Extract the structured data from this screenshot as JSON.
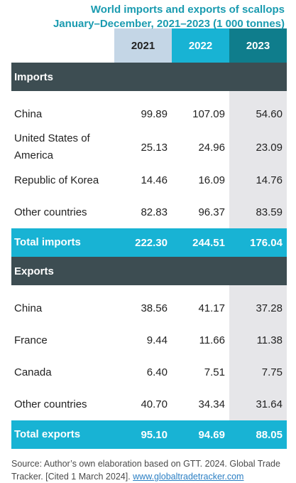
{
  "title": {
    "line1": "World imports and exports of scallops",
    "line2": "January–December, 2021–2023 (1 000 tonnes)"
  },
  "columns": [
    "2021",
    "2022",
    "2023"
  ],
  "imports": {
    "header": "Imports",
    "rows": [
      {
        "label": "China",
        "v2021": "99.89",
        "v2022": "107.09",
        "v2023": "54.60"
      },
      {
        "label": "United States of America",
        "v2021": "25.13",
        "v2022": "24.96",
        "v2023": "23.09"
      },
      {
        "label": "Republic of Korea",
        "v2021": "14.46",
        "v2022": "16.09",
        "v2023": "14.76"
      },
      {
        "label": "Other countries",
        "v2021": "82.83",
        "v2022": "96.37",
        "v2023": "83.59"
      }
    ],
    "total": {
      "label": "Total imports",
      "v2021": "222.30",
      "v2022": "244.51",
      "v2023": "176.04"
    }
  },
  "exports": {
    "header": "Exports",
    "rows": [
      {
        "label": "China",
        "v2021": "38.56",
        "v2022": "41.17",
        "v2023": "37.28"
      },
      {
        "label": "France",
        "v2021": "9.44",
        "v2022": "11.66",
        "v2023": "11.38"
      },
      {
        "label": "Canada",
        "v2021": "6.40",
        "v2022": "7.51",
        "v2023": "7.75"
      },
      {
        "label": "Other countries",
        "v2021": "40.70",
        "v2022": "34.34",
        "v2023": "31.64"
      }
    ],
    "total": {
      "label": "Total exports",
      "v2021": "95.10",
      "v2022": "94.69",
      "v2023": "88.05"
    }
  },
  "source": {
    "text": "Source: Author’s own elaboration based on GTT. 2024. Global Trade Tracker. [Cited 1 March 2024].",
    "link": "www.globaltradetracker.com"
  },
  "colors": {
    "title": "#1a9bb0",
    "header_2021": "#c4d6e6",
    "header_2022": "#18b3d4",
    "header_2023": "#0f7d8c",
    "section_bar": "#3d4d52",
    "total_bar": "#18b3d4"
  }
}
